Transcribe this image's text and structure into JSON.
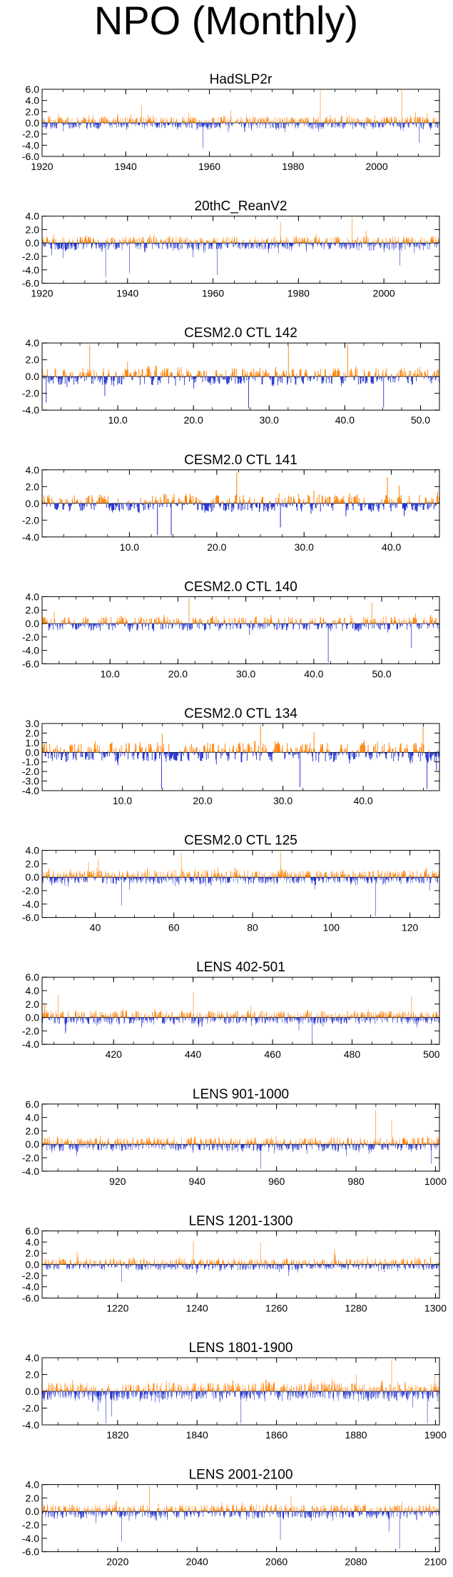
{
  "figure_title": "NPO (Monthly)",
  "colors": {
    "positive": "#ff7f00",
    "negative": "#1f2fcf",
    "axis": "#000000"
  },
  "chart_data": [
    {
      "type": "bar",
      "title": "HadSLP2r",
      "x_range": [
        1920,
        2015
      ],
      "ylim": [
        -6,
        6
      ],
      "y_ticks": [
        6,
        4,
        2,
        0,
        -2,
        -4,
        -6
      ],
      "y_tick_labels": [
        "6.0",
        "4.0",
        "2.0",
        "0.0",
        "-2.0",
        "-4.0",
        "-6.0"
      ],
      "x_ticks": [
        1920,
        1940,
        1960,
        1980,
        2000
      ],
      "x_tick_labels": [
        "1920",
        "1940",
        "1960",
        "1980",
        "2000"
      ],
      "n_months": 1152,
      "amplitude_pos": 1.6,
      "amplitude_neg": 1.5,
      "events": [
        [
          0.405,
          -3.0
        ],
        [
          0.7,
          4.0
        ],
        [
          0.905,
          3.8
        ],
        [
          0.95,
          -2.4
        ],
        [
          0.25,
          1.9
        ]
      ]
    },
    {
      "type": "bar",
      "title": "20thC_ReanV2",
      "x_range": [
        1920,
        2013
      ],
      "ylim": [
        -6,
        4
      ],
      "y_ticks": [
        4,
        2,
        0,
        -2,
        -4,
        -6
      ],
      "y_tick_labels": [
        "4.0",
        "2.0",
        "0.0",
        "-2.0",
        "-4.0",
        "-6.0"
      ],
      "x_ticks": [
        1920,
        1940,
        1960,
        1980,
        2000
      ],
      "x_tick_labels": [
        "1920",
        "1940",
        "1960",
        "1980",
        "2000"
      ],
      "n_months": 1116,
      "amplitude_pos": 1.3,
      "amplitude_neg": 1.4,
      "events": [
        [
          0.16,
          -3.6
        ],
        [
          0.22,
          -3.2
        ],
        [
          0.44,
          -3.4
        ],
        [
          0.6,
          2.4
        ],
        [
          0.78,
          3.0
        ],
        [
          0.9,
          -2.4
        ]
      ]
    },
    {
      "type": "bar",
      "title": "CESM2.0 CTL 142",
      "x_range": [
        0,
        52.5
      ],
      "ylim": [
        -4,
        4
      ],
      "y_ticks": [
        4,
        2,
        0,
        -2,
        -4
      ],
      "y_tick_labels": [
        "4.0",
        "2.0",
        "0.0",
        "-2.0",
        "-4.0"
      ],
      "x_ticks": [
        10,
        20,
        30,
        40,
        50
      ],
      "x_tick_labels": [
        "10.0",
        "20.0",
        "30.0",
        "40.0",
        "50.0"
      ],
      "n_months": 630,
      "amplitude_pos": 1.4,
      "amplitude_neg": 1.4,
      "events": [
        [
          0.01,
          -2.2
        ],
        [
          0.12,
          2.9
        ],
        [
          0.52,
          -2.7
        ],
        [
          0.62,
          2.7
        ],
        [
          0.77,
          2.9
        ],
        [
          0.86,
          -2.6
        ]
      ]
    },
    {
      "type": "bar",
      "title": "CESM2.0 CTL 141",
      "x_range": [
        0,
        45.5
      ],
      "ylim": [
        -4,
        4
      ],
      "y_ticks": [
        4,
        2,
        0,
        -2,
        -4
      ],
      "y_tick_labels": [
        "4.0",
        "2.0",
        "0.0",
        "-2.0",
        "-4.0"
      ],
      "x_ticks": [
        10,
        20,
        30,
        40
      ],
      "x_tick_labels": [
        "10.0",
        "20.0",
        "30.0",
        "40.0"
      ],
      "n_months": 546,
      "amplitude_pos": 1.4,
      "amplitude_neg": 1.3,
      "events": [
        [
          0.29,
          -3.0
        ],
        [
          0.325,
          -3.6
        ],
        [
          0.49,
          2.6
        ],
        [
          0.6,
          -2.2
        ],
        [
          0.87,
          2.2
        ]
      ]
    },
    {
      "type": "bar",
      "title": "CESM2.0 CTL 140",
      "x_range": [
        0,
        58.5
      ],
      "ylim": [
        -6,
        4
      ],
      "y_ticks": [
        4,
        2,
        0,
        -2,
        -4,
        -6
      ],
      "y_tick_labels": [
        "4.0",
        "2.0",
        "0.0",
        "-2.0",
        "-4.0",
        "-6.0"
      ],
      "x_ticks": [
        10,
        20,
        30,
        40,
        50
      ],
      "x_tick_labels": [
        "10.0",
        "20.0",
        "30.0",
        "40.0",
        "50.0"
      ],
      "n_months": 702,
      "amplitude_pos": 1.4,
      "amplitude_neg": 1.4,
      "events": [
        [
          0.37,
          2.9
        ],
        [
          0.72,
          -4.4
        ],
        [
          0.83,
          2.2
        ],
        [
          0.93,
          -2.6
        ]
      ]
    },
    {
      "type": "bar",
      "title": "CESM2.0 CTL 134",
      "x_range": [
        0,
        49.5
      ],
      "ylim": [
        -4,
        3
      ],
      "y_ticks": [
        3,
        2,
        1,
        0,
        -1,
        -2,
        -3,
        -4
      ],
      "y_tick_labels": [
        "3.0",
        "2.0",
        "1.0",
        "0.0",
        "-1.0",
        "-2.0",
        "-3.0",
        "-4.0"
      ],
      "x_ticks": [
        10,
        20,
        30,
        40
      ],
      "x_tick_labels": [
        "10.0",
        "20.0",
        "30.0",
        "40.0"
      ],
      "n_months": 594,
      "amplitude_pos": 1.3,
      "amplitude_neg": 1.3,
      "events": [
        [
          0.3,
          -3.2
        ],
        [
          0.55,
          2.6
        ],
        [
          0.65,
          -2.8
        ],
        [
          0.97,
          -3.4
        ],
        [
          0.96,
          2.6
        ]
      ]
    },
    {
      "type": "bar",
      "title": "CESM2.0 CTL 125",
      "x_range": [
        26.5,
        127.5
      ],
      "ylim": [
        -6,
        4
      ],
      "y_ticks": [
        4,
        2,
        0,
        -2,
        -4,
        -6
      ],
      "y_tick_labels": [
        "4.0",
        "2.0",
        "0.0",
        "-2.0",
        "-4.0",
        "-6.0"
      ],
      "x_ticks": [
        40,
        60,
        80,
        100,
        120
      ],
      "x_tick_labels": [
        "40",
        "60",
        "80",
        "100",
        "120"
      ],
      "n_months": 1212,
      "amplitude_pos": 1.4,
      "amplitude_neg": 1.4,
      "events": [
        [
          0.84,
          -5.8
        ],
        [
          0.35,
          2.6
        ],
        [
          0.6,
          2.8
        ],
        [
          0.2,
          -3.0
        ]
      ]
    },
    {
      "type": "bar",
      "title": "LENS 402-501",
      "x_range": [
        402,
        502
      ],
      "ylim": [
        -4,
        6
      ],
      "y_ticks": [
        6,
        4,
        2,
        0,
        -2,
        -4
      ],
      "y_tick_labels": [
        "6.0",
        "4.0",
        "2.0",
        "0.0",
        "-2.0",
        "-4.0"
      ],
      "x_ticks": [
        420,
        440,
        460,
        480,
        500
      ],
      "x_tick_labels": [
        "420",
        "440",
        "460",
        "480",
        "500"
      ],
      "n_months": 1200,
      "amplitude_pos": 1.3,
      "amplitude_neg": 1.2,
      "events": [
        [
          0.04,
          2.6
        ],
        [
          0.38,
          2.9
        ],
        [
          0.68,
          -3.0
        ],
        [
          0.93,
          2.4
        ]
      ]
    },
    {
      "type": "bar",
      "title": "LENS 901-1000",
      "x_range": [
        901,
        1001
      ],
      "ylim": [
        -4,
        6
      ],
      "y_ticks": [
        6,
        4,
        2,
        0,
        -2,
        -4
      ],
      "y_tick_labels": [
        "6.0",
        "4.0",
        "2.0",
        "0.0",
        "-2.0",
        "-4.0"
      ],
      "x_ticks": [
        920,
        940,
        960,
        980,
        1000
      ],
      "x_tick_labels": [
        "920",
        "940",
        "960",
        "980",
        "1000"
      ],
      "n_months": 1200,
      "amplitude_pos": 1.3,
      "amplitude_neg": 1.3,
      "events": [
        [
          0.84,
          3.9
        ],
        [
          0.88,
          2.8
        ],
        [
          0.55,
          -2.8
        ],
        [
          0.98,
          -2.2
        ]
      ]
    },
    {
      "type": "bar",
      "title": "LENS 1201-1300",
      "x_range": [
        1201,
        1301
      ],
      "ylim": [
        -6,
        6
      ],
      "y_ticks": [
        6,
        4,
        2,
        0,
        -2,
        -4,
        -6
      ],
      "y_tick_labels": [
        "6.0",
        "4.0",
        "2.0",
        "0.0",
        "-2.0",
        "-4.0",
        "-6.0"
      ],
      "x_ticks": [
        1220,
        1240,
        1260,
        1280,
        1300
      ],
      "x_tick_labels": [
        "1220",
        "1240",
        "1260",
        "1280",
        "1300"
      ],
      "n_months": 1200,
      "amplitude_pos": 1.4,
      "amplitude_neg": 1.3,
      "events": [
        [
          0.38,
          3.0
        ],
        [
          0.55,
          2.8
        ],
        [
          0.2,
          -2.4
        ]
      ]
    },
    {
      "type": "bar",
      "title": "LENS 1801-1900",
      "x_range": [
        1801,
        1901
      ],
      "ylim": [
        -4,
        4
      ],
      "y_ticks": [
        4,
        2,
        0,
        -2,
        -4
      ],
      "y_tick_labels": [
        "4.0",
        "2.0",
        "0.0",
        "-2.0",
        "-4.0"
      ],
      "x_ticks": [
        1820,
        1840,
        1860,
        1880,
        1900
      ],
      "x_tick_labels": [
        "1820",
        "1840",
        "1860",
        "1880",
        "1900"
      ],
      "n_months": 1200,
      "amplitude_pos": 1.4,
      "amplitude_neg": 1.4,
      "events": [
        [
          0.16,
          -3.2
        ],
        [
          0.5,
          -3.4
        ],
        [
          0.88,
          2.8
        ],
        [
          0.97,
          -2.9
        ]
      ]
    },
    {
      "type": "bar",
      "title": "LENS 2001-2100",
      "x_range": [
        2001,
        2101
      ],
      "ylim": [
        -6,
        4
      ],
      "y_ticks": [
        4,
        2,
        0,
        -2,
        -4,
        -6
      ],
      "y_tick_labels": [
        "4.0",
        "2.0",
        "0.0",
        "-2.0",
        "-4.0",
        "-6.0"
      ],
      "x_ticks": [
        2020,
        2040,
        2060,
        2080,
        2100
      ],
      "x_tick_labels": [
        "2020",
        "2040",
        "2060",
        "2080",
        "2100"
      ],
      "n_months": 1200,
      "amplitude_pos": 1.3,
      "amplitude_neg": 1.4,
      "events": [
        [
          0.27,
          3.6
        ],
        [
          0.2,
          -3.2
        ],
        [
          0.6,
          -3.0
        ],
        [
          0.9,
          -4.0
        ]
      ]
    }
  ]
}
